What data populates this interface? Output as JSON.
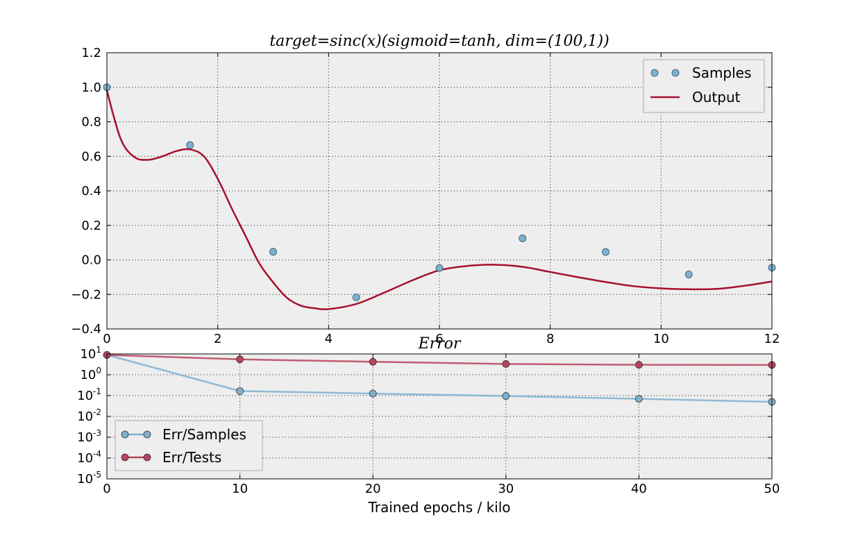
{
  "chart_data": [
    {
      "type": "line",
      "title": "target=sinc(x)(sigmoid=tanh, dim=(100,1))",
      "xlabel": "",
      "ylabel": "",
      "xlim": [
        0,
        12
      ],
      "ylim": [
        -0.4,
        1.2
      ],
      "xticks": [
        0,
        2,
        4,
        6,
        8,
        10,
        12
      ],
      "yticks": [
        -0.4,
        -0.2,
        0.0,
        0.2,
        0.4,
        0.6,
        0.8,
        1.0,
        1.2
      ],
      "ytick_labels": [
        "−0.4",
        "−0.2",
        "0.0",
        "0.2",
        "0.4",
        "0.6",
        "0.8",
        "1.0",
        "1.2"
      ],
      "grid": true,
      "legend": "top-right",
      "series": [
        {
          "name": "Samples",
          "kind": "scatter",
          "color": "#7eb0d0",
          "x": [
            0,
            1.5,
            3,
            4.5,
            6,
            7.5,
            9,
            10.5,
            12
          ],
          "y": [
            1.0,
            0.665,
            0.047,
            -0.217,
            -0.047,
            0.125,
            0.046,
            -0.084,
            -0.045
          ]
        },
        {
          "name": "Output",
          "kind": "line",
          "color": "#a50f2d",
          "x": [
            0,
            0.25,
            0.5,
            0.75,
            1.0,
            1.25,
            1.5,
            1.75,
            2.0,
            2.25,
            2.5,
            2.75,
            3.0,
            3.25,
            3.5,
            3.75,
            4.0,
            4.5,
            5.0,
            5.5,
            6.0,
            6.5,
            7.0,
            7.5,
            8.0,
            8.5,
            9.0,
            9.5,
            10.0,
            10.5,
            11.0,
            11.5,
            12.0
          ],
          "y": [
            0.98,
            0.7,
            0.595,
            0.58,
            0.6,
            0.63,
            0.64,
            0.6,
            0.47,
            0.3,
            0.14,
            -0.02,
            -0.13,
            -0.22,
            -0.265,
            -0.28,
            -0.285,
            -0.255,
            -0.19,
            -0.12,
            -0.06,
            -0.035,
            -0.028,
            -0.04,
            -0.07,
            -0.1,
            -0.128,
            -0.152,
            -0.165,
            -0.17,
            -0.168,
            -0.15,
            -0.125
          ]
        }
      ]
    },
    {
      "type": "line",
      "title": "Error",
      "xlabel": "Trained epochs / kilo",
      "ylabel": "",
      "xlim": [
        0,
        50
      ],
      "ylim": [
        1e-05,
        10
      ],
      "yscale": "log",
      "xticks": [
        0,
        10,
        20,
        30,
        40,
        50
      ],
      "yticks": [
        1e-05,
        0.0001,
        0.001,
        0.01,
        0.1,
        1,
        10
      ],
      "ytick_exponents": [
        "-5",
        "-4",
        "-3",
        "-2",
        "-1",
        "0",
        "1"
      ],
      "ytick_base": "10",
      "grid": true,
      "legend": "bottom-left",
      "categories": [
        0,
        10,
        20,
        30,
        40,
        50
      ],
      "series": [
        {
          "name": "Err/Samples",
          "color": "#7eb0d0",
          "values": [
            9.0,
            0.165,
            0.125,
            0.095,
            0.07,
            0.05
          ]
        },
        {
          "name": "Err/Tests",
          "color": "#b8435d",
          "values": [
            9.0,
            5.5,
            4.2,
            3.3,
            3.0,
            2.95
          ]
        }
      ]
    }
  ]
}
